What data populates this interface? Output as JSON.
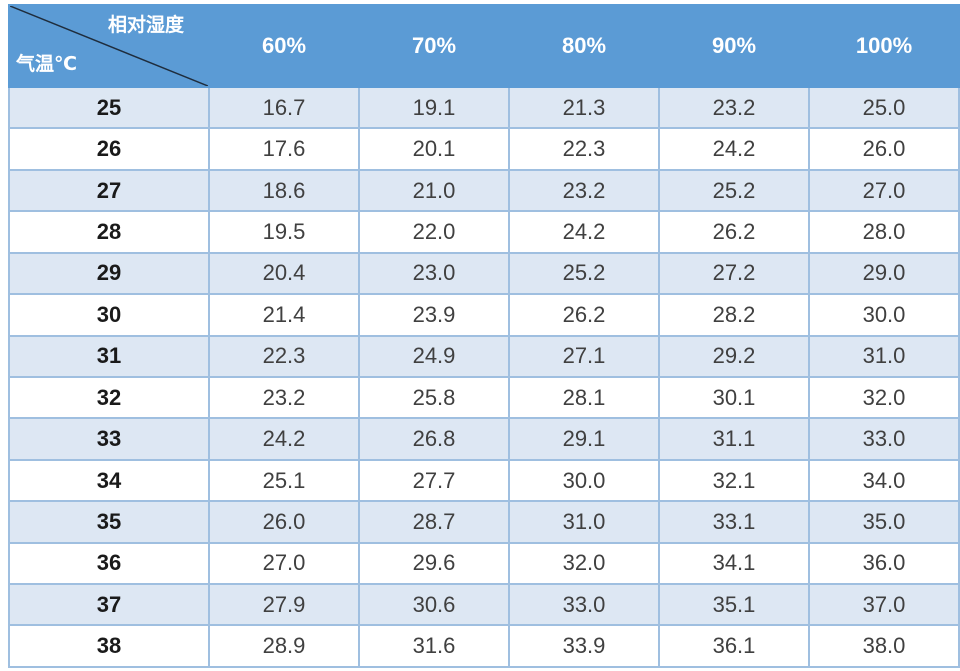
{
  "header": {
    "corner_top": "相对湿度",
    "corner_bottom": "气温℃",
    "columns": [
      "60%",
      "70%",
      "80%",
      "90%",
      "100%"
    ]
  },
  "rows": [
    {
      "temp": "25",
      "values": [
        "16.7",
        "19.1",
        "21.3",
        "23.2",
        "25.0"
      ]
    },
    {
      "temp": "26",
      "values": [
        "17.6",
        "20.1",
        "22.3",
        "24.2",
        "26.0"
      ]
    },
    {
      "temp": "27",
      "values": [
        "18.6",
        "21.0",
        "23.2",
        "25.2",
        "27.0"
      ]
    },
    {
      "temp": "28",
      "values": [
        "19.5",
        "22.0",
        "24.2",
        "26.2",
        "28.0"
      ]
    },
    {
      "temp": "29",
      "values": [
        "20.4",
        "23.0",
        "25.2",
        "27.2",
        "29.0"
      ]
    },
    {
      "temp": "30",
      "values": [
        "21.4",
        "23.9",
        "26.2",
        "28.2",
        "30.0"
      ]
    },
    {
      "temp": "31",
      "values": [
        "22.3",
        "24.9",
        "27.1",
        "29.2",
        "31.0"
      ]
    },
    {
      "temp": "32",
      "values": [
        "23.2",
        "25.8",
        "28.1",
        "30.1",
        "32.0"
      ]
    },
    {
      "temp": "33",
      "values": [
        "24.2",
        "26.8",
        "29.1",
        "31.1",
        "33.0"
      ]
    },
    {
      "temp": "34",
      "values": [
        "25.1",
        "27.7",
        "30.0",
        "32.1",
        "34.0"
      ]
    },
    {
      "temp": "35",
      "values": [
        "26.0",
        "28.7",
        "31.0",
        "33.1",
        "35.0"
      ]
    },
    {
      "temp": "36",
      "values": [
        "27.0",
        "29.6",
        "32.0",
        "34.1",
        "36.0"
      ]
    },
    {
      "temp": "37",
      "values": [
        "27.9",
        "30.6",
        "33.0",
        "35.1",
        "37.0"
      ]
    },
    {
      "temp": "38",
      "values": [
        "28.9",
        "31.6",
        "33.9",
        "36.1",
        "38.0"
      ]
    }
  ],
  "colors": {
    "header_bg": "#5b9bd5",
    "header_text": "#ffffff",
    "stripe": "#dde7f3",
    "border": "#9fbfe0"
  }
}
